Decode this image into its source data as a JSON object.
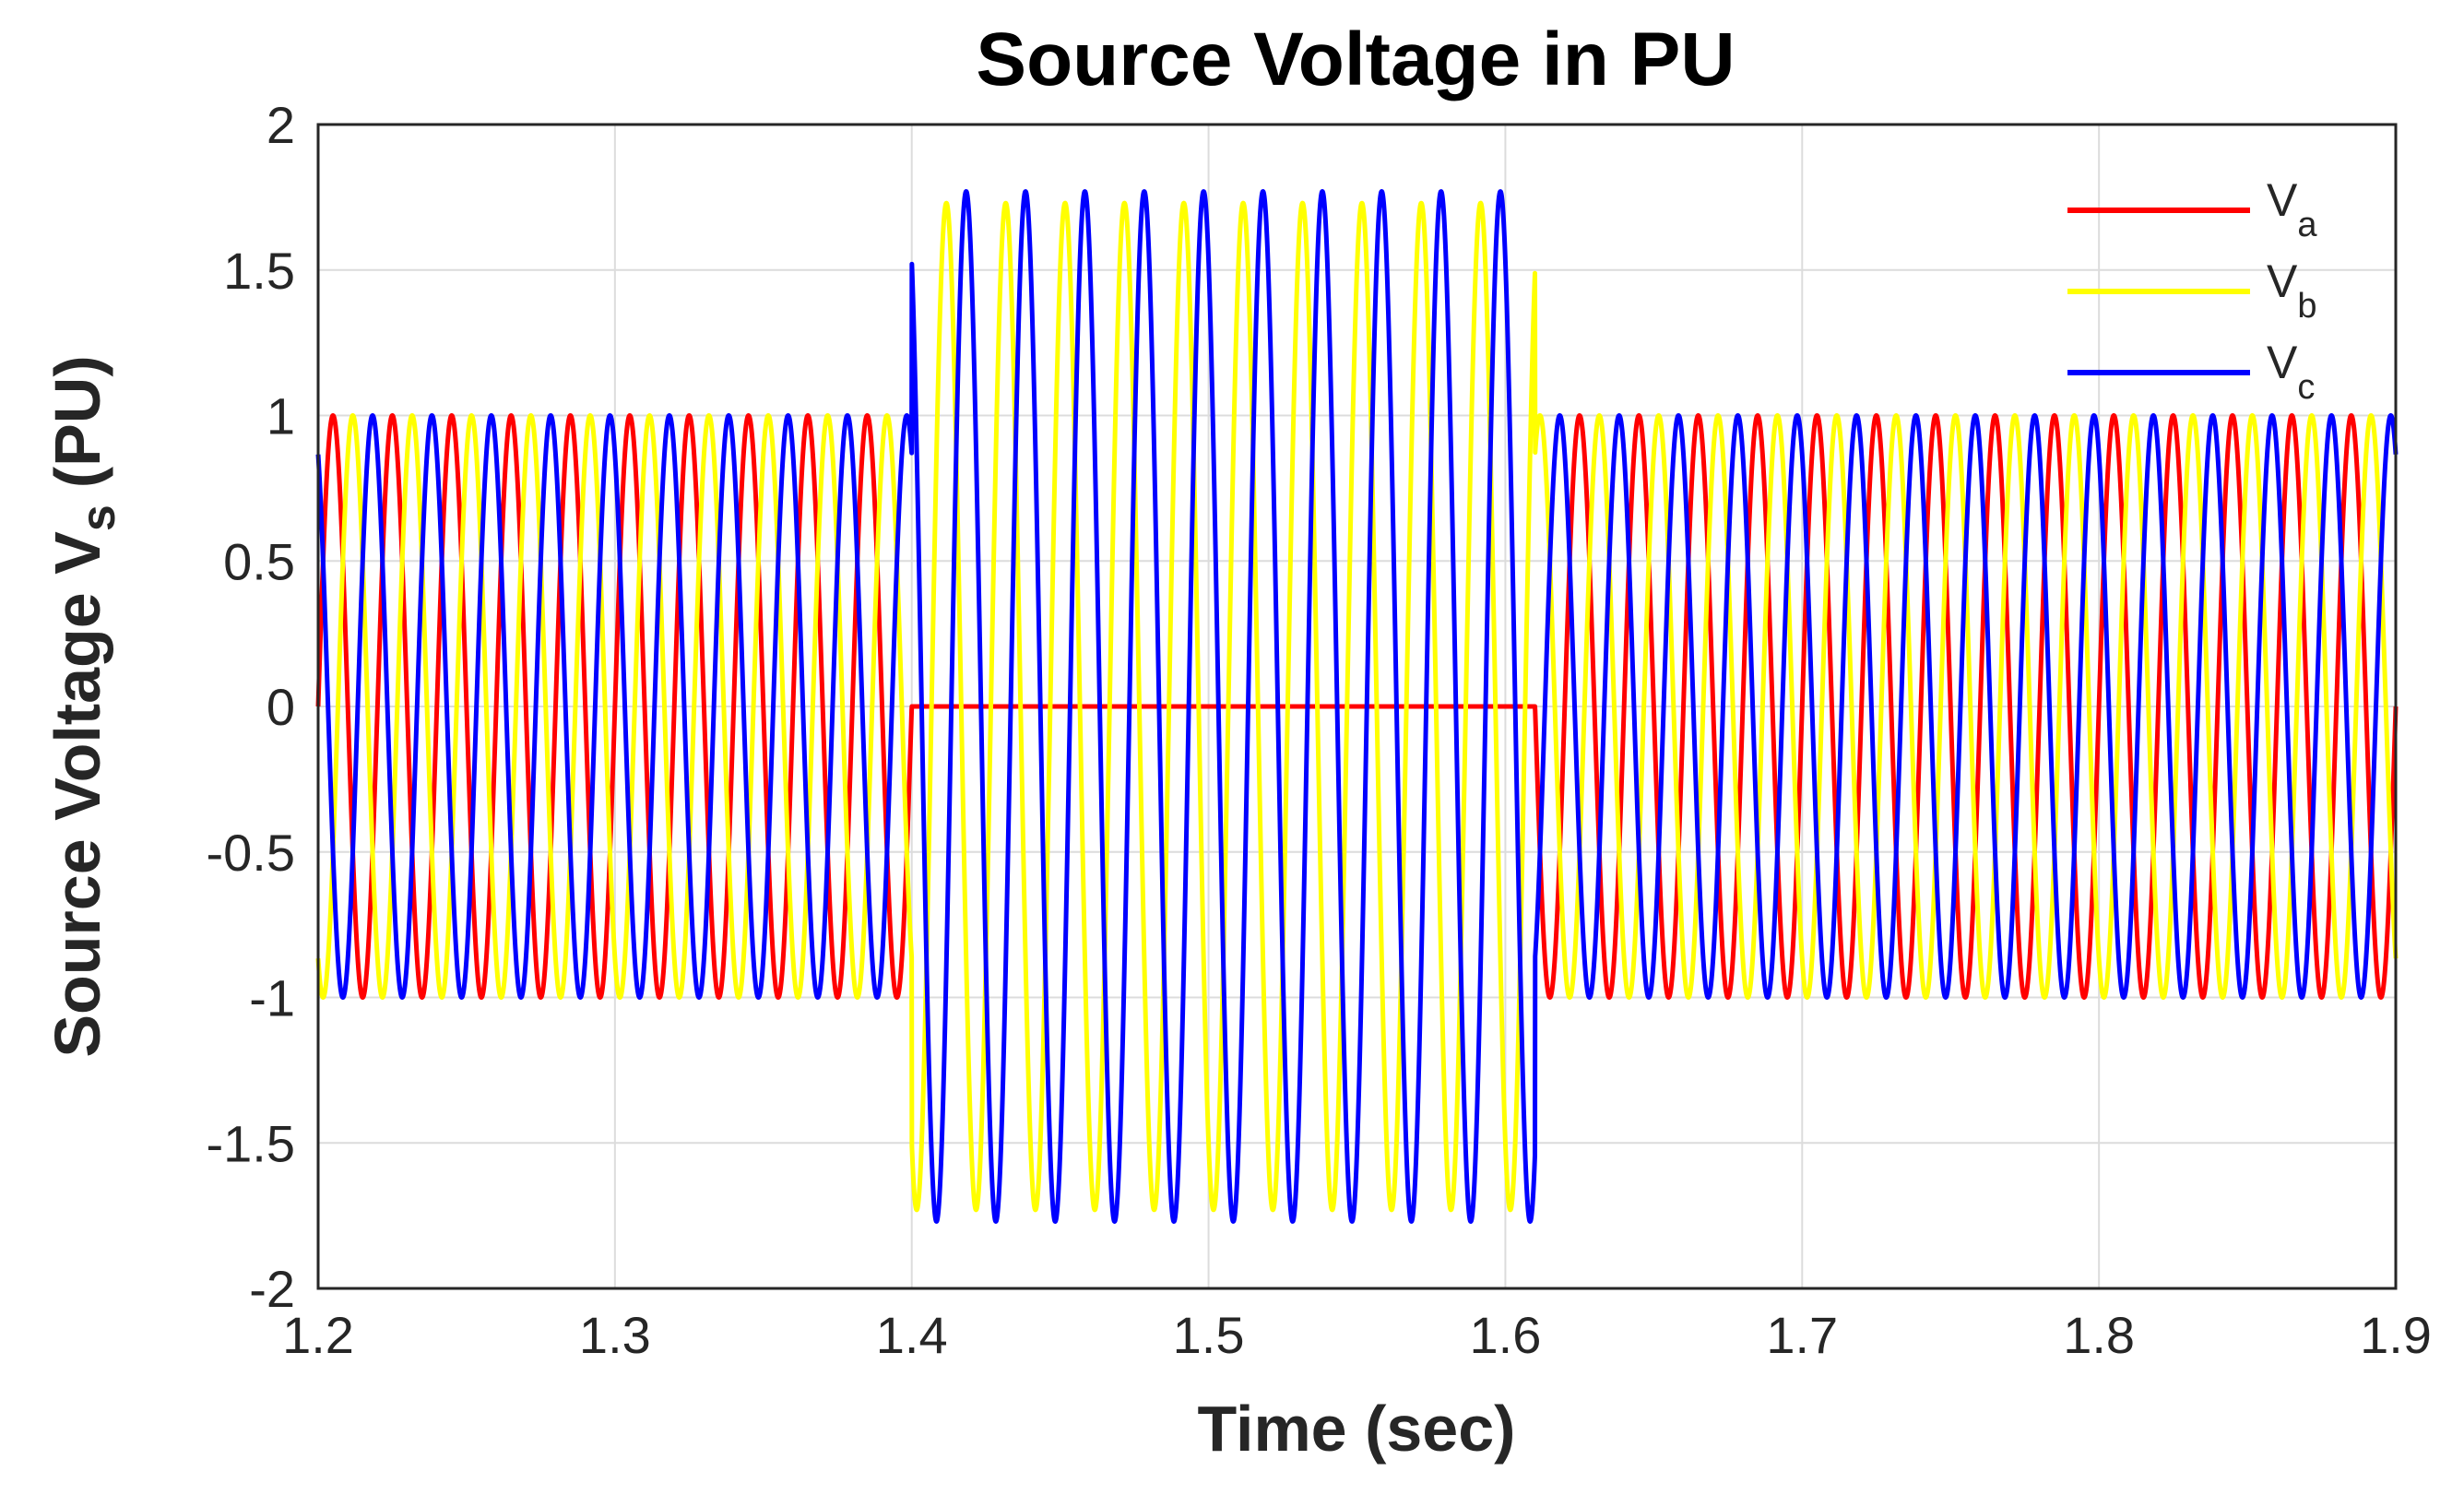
{
  "chart_data": {
    "type": "line",
    "title": "Source Voltage in PU",
    "xlabel": "Time (sec)",
    "ylabel": "Source Voltage V",
    "ylabel_subscript": "s",
    "ylabel_suffix": "(PU)",
    "xlim": [
      1.2,
      1.9
    ],
    "ylim": [
      -2,
      2
    ],
    "x_ticks": [
      1.2,
      1.3,
      1.4,
      1.5,
      1.6,
      1.7,
      1.8,
      1.9
    ],
    "x_tick_labels": [
      "1.2",
      "1.3",
      "1.4",
      "1.5",
      "1.6",
      "1.7",
      "1.8",
      "1.9"
    ],
    "y_ticks": [
      2,
      1.5,
      1,
      0.5,
      0,
      -0.5,
      -1,
      -1.5,
      -2
    ],
    "y_tick_labels": [
      "2",
      "1.5",
      "1",
      "0.5",
      "0",
      "-0.5",
      "-1",
      "-1.5",
      "-2"
    ],
    "grid": true,
    "legend_position": "top-right",
    "frequency_hz": 50,
    "sag_interval": [
      1.4,
      1.61
    ],
    "series": [
      {
        "name": "V",
        "subscript": "a",
        "color": "#ff0000",
        "phase_deg": 0,
        "amplitude_normal": 1.0,
        "amplitude_during_event": 0.0
      },
      {
        "name": "V",
        "subscript": "b",
        "color": "#ffff00",
        "phase_deg": -120,
        "amplitude_normal": 1.0,
        "amplitude_during_event": 1.73
      },
      {
        "name": "V",
        "subscript": "c",
        "color": "#0000ff",
        "phase_deg": 120,
        "amplitude_normal": 1.0,
        "amplitude_during_event": 1.77
      }
    ]
  }
}
